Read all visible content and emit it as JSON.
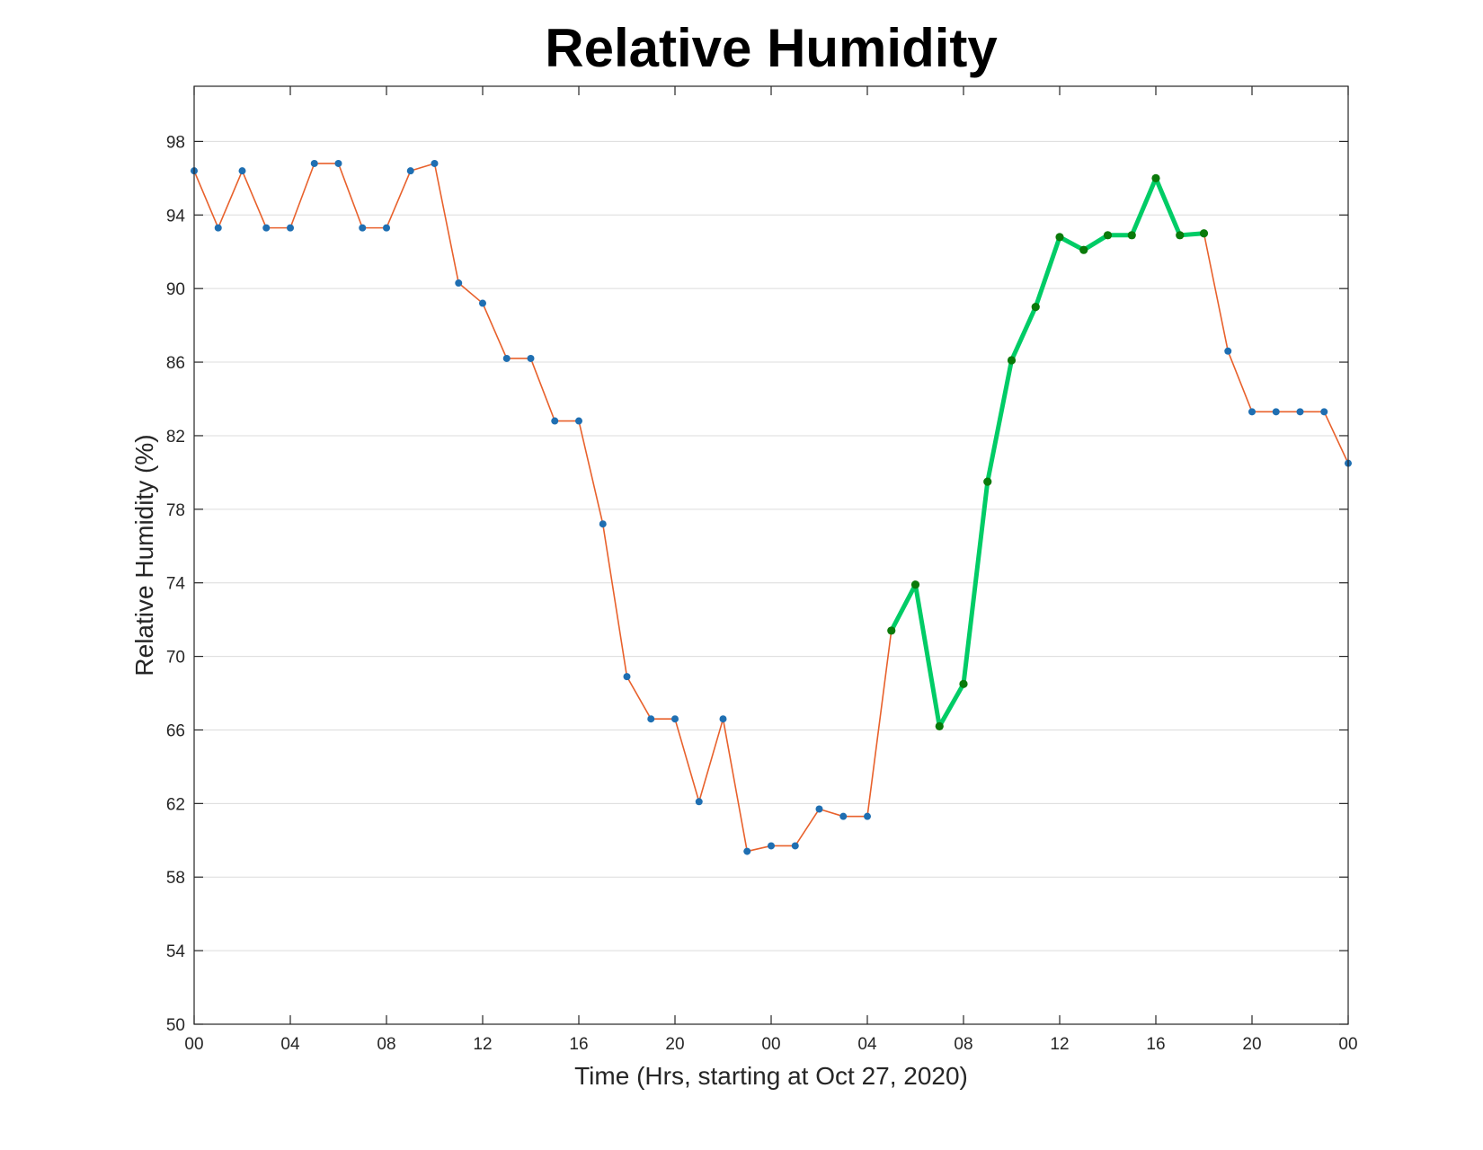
{
  "chart_data": {
    "type": "line",
    "title": "Relative Humidity",
    "xlabel": "Time (Hrs, starting at Oct 27, 2020)",
    "ylabel": "Relative Humidity (%)",
    "xlim": [
      0,
      48
    ],
    "ylim": [
      50,
      101
    ],
    "x_ticks": [
      0,
      4,
      8,
      12,
      16,
      20,
      24,
      28,
      32,
      36,
      40,
      44,
      48
    ],
    "x_tick_labels": [
      "00",
      "04",
      "08",
      "12",
      "16",
      "20",
      "00",
      "04",
      "08",
      "12",
      "16",
      "20",
      "00"
    ],
    "y_ticks": [
      50,
      54,
      58,
      62,
      66,
      70,
      74,
      78,
      82,
      86,
      90,
      94,
      98
    ],
    "y_tick_labels": [
      "50",
      "54",
      "58",
      "62",
      "66",
      "70",
      "74",
      "78",
      "82",
      "86",
      "90",
      "94",
      "98"
    ],
    "grid": "horizontal",
    "series": [
      {
        "line_color": "#e8612c",
        "marker_color": "#1f6fb2",
        "x": [
          0,
          1,
          2,
          3,
          4,
          5,
          6,
          7,
          8,
          9,
          10,
          11,
          12,
          13,
          14,
          15,
          16,
          17,
          18,
          19,
          20,
          21,
          22,
          23,
          24,
          25,
          26,
          27,
          28,
          29,
          30,
          31,
          32,
          33,
          34,
          35,
          36,
          37,
          38,
          39,
          40,
          41,
          42,
          43,
          44,
          45,
          46,
          47,
          48
        ],
        "values": [
          96.4,
          93.3,
          96.4,
          93.3,
          93.3,
          96.8,
          96.8,
          93.3,
          93.3,
          96.4,
          96.8,
          90.3,
          89.2,
          86.2,
          86.2,
          82.8,
          82.8,
          77.2,
          68.9,
          66.6,
          66.6,
          62.1,
          66.6,
          59.4,
          59.7,
          59.7,
          61.7,
          61.3,
          61.3,
          71.4,
          73.9,
          66.2,
          68.5,
          79.5,
          86.1,
          89.0,
          92.8,
          92.1,
          92.9,
          92.9,
          96.0,
          92.9,
          93.0,
          86.6,
          83.3,
          83.3,
          83.3,
          83.3,
          80.5
        ]
      },
      {
        "line_color": "#00cc66",
        "marker_color": "#0a7a0a",
        "x": [
          29,
          30,
          31,
          32,
          33,
          34,
          35,
          36,
          37,
          38,
          39,
          40,
          41,
          42
        ],
        "values": [
          71.4,
          73.9,
          66.2,
          68.5,
          79.5,
          86.1,
          89.0,
          92.8,
          92.1,
          92.9,
          92.9,
          96.0,
          92.9,
          93.0
        ]
      }
    ]
  }
}
